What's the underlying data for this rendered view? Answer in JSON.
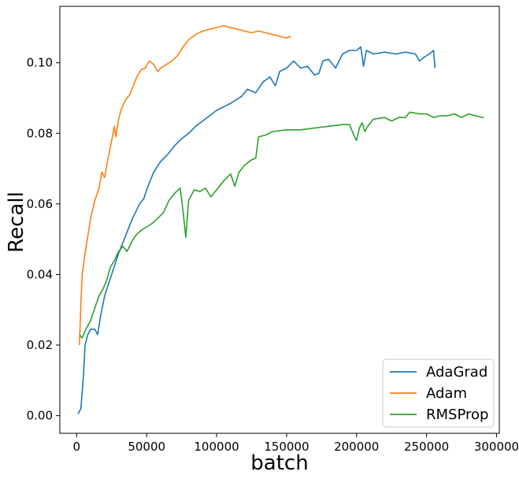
{
  "chart_data": {
    "type": "line",
    "xlabel": "batch",
    "ylabel": "Recall",
    "xlim": [
      -12000,
      302000
    ],
    "ylim": [
      -0.005,
      0.116
    ],
    "x_ticks": [
      0,
      50000,
      100000,
      150000,
      200000,
      250000,
      300000
    ],
    "y_ticks": [
      0.0,
      0.02,
      0.04,
      0.06,
      0.08,
      0.1
    ],
    "x_tick_labels": [
      "0",
      "50000",
      "100000",
      "150000",
      "200000",
      "250000",
      "300000"
    ],
    "y_tick_labels": [
      "0.00",
      "0.02",
      "0.04",
      "0.06",
      "0.08",
      "0.10"
    ],
    "legend_position": "lower-right",
    "grid": false,
    "series": [
      {
        "name": "AdaGrad",
        "color": "#1f77b4",
        "points": [
          [
            1000,
            0.0005
          ],
          [
            3000,
            0.002
          ],
          [
            5000,
            0.012
          ],
          [
            6000,
            0.02
          ],
          [
            8000,
            0.023
          ],
          [
            10000,
            0.0245
          ],
          [
            13000,
            0.0245
          ],
          [
            15000,
            0.023
          ],
          [
            17000,
            0.028
          ],
          [
            20000,
            0.034
          ],
          [
            25000,
            0.04
          ],
          [
            30000,
            0.046
          ],
          [
            35000,
            0.051
          ],
          [
            40000,
            0.056
          ],
          [
            45000,
            0.06
          ],
          [
            48000,
            0.0615
          ],
          [
            50000,
            0.064
          ],
          [
            55000,
            0.069
          ],
          [
            60000,
            0.072
          ],
          [
            65000,
            0.074
          ],
          [
            70000,
            0.0765
          ],
          [
            75000,
            0.0785
          ],
          [
            80000,
            0.08
          ],
          [
            85000,
            0.082
          ],
          [
            90000,
            0.0835
          ],
          [
            95000,
            0.085
          ],
          [
            100000,
            0.0865
          ],
          [
            110000,
            0.0885
          ],
          [
            118000,
            0.0905
          ],
          [
            122000,
            0.0925
          ],
          [
            128000,
            0.0915
          ],
          [
            133000,
            0.0945
          ],
          [
            138000,
            0.096
          ],
          [
            142000,
            0.0935
          ],
          [
            145000,
            0.0975
          ],
          [
            150000,
            0.0985
          ],
          [
            155000,
            0.1005
          ],
          [
            160000,
            0.0985
          ],
          [
            165000,
            0.099
          ],
          [
            170000,
            0.0965
          ],
          [
            173000,
            0.097
          ],
          [
            176000,
            0.1005
          ],
          [
            180000,
            0.101
          ],
          [
            185000,
            0.0985
          ],
          [
            190000,
            0.1025
          ],
          [
            195000,
            0.1035
          ],
          [
            200000,
            0.1035
          ],
          [
            203000,
            0.1045
          ],
          [
            205000,
            0.099
          ],
          [
            207000,
            0.1035
          ],
          [
            212000,
            0.1025
          ],
          [
            220000,
            0.103
          ],
          [
            228000,
            0.1025
          ],
          [
            235000,
            0.103
          ],
          [
            242000,
            0.1025
          ],
          [
            245000,
            0.1005
          ],
          [
            248000,
            0.1015
          ],
          [
            252000,
            0.1025
          ],
          [
            255000,
            0.1035
          ],
          [
            256000,
            0.0985
          ]
        ]
      },
      {
        "name": "Adam",
        "color": "#ff7f0e",
        "points": [
          [
            2000,
            0.02
          ],
          [
            3000,
            0.032
          ],
          [
            4000,
            0.04
          ],
          [
            6000,
            0.046
          ],
          [
            8000,
            0.051
          ],
          [
            10000,
            0.056
          ],
          [
            13000,
            0.061
          ],
          [
            16000,
            0.0645
          ],
          [
            18000,
            0.069
          ],
          [
            20000,
            0.0675
          ],
          [
            22000,
            0.072
          ],
          [
            25000,
            0.078
          ],
          [
            27000,
            0.082
          ],
          [
            28000,
            0.079
          ],
          [
            30000,
            0.084
          ],
          [
            32000,
            0.087
          ],
          [
            35000,
            0.0895
          ],
          [
            38000,
            0.091
          ],
          [
            40000,
            0.093
          ],
          [
            43000,
            0.096
          ],
          [
            46000,
            0.098
          ],
          [
            49000,
            0.0985
          ],
          [
            52000,
            0.1005
          ],
          [
            55000,
            0.0995
          ],
          [
            58000,
            0.0975
          ],
          [
            60000,
            0.0985
          ],
          [
            64000,
            0.0995
          ],
          [
            68000,
            0.1005
          ],
          [
            72000,
            0.102
          ],
          [
            76000,
            0.1045
          ],
          [
            80000,
            0.1065
          ],
          [
            85000,
            0.108
          ],
          [
            90000,
            0.109
          ],
          [
            95000,
            0.1095
          ],
          [
            100000,
            0.11
          ],
          [
            105000,
            0.1105
          ],
          [
            110000,
            0.11
          ],
          [
            115000,
            0.1095
          ],
          [
            120000,
            0.109
          ],
          [
            125000,
            0.1085
          ],
          [
            130000,
            0.109
          ],
          [
            135000,
            0.1085
          ],
          [
            140000,
            0.108
          ],
          [
            145000,
            0.1075
          ],
          [
            150000,
            0.107
          ],
          [
            152000,
            0.1075
          ],
          [
            153000,
            0.107
          ]
        ]
      },
      {
        "name": "RMSProp",
        "color": "#2ca02c",
        "points": [
          [
            2000,
            0.023
          ],
          [
            4000,
            0.022
          ],
          [
            6000,
            0.024
          ],
          [
            8000,
            0.0255
          ],
          [
            10000,
            0.027
          ],
          [
            13000,
            0.0305
          ],
          [
            16000,
            0.034
          ],
          [
            19000,
            0.036
          ],
          [
            22000,
            0.039
          ],
          [
            24000,
            0.042
          ],
          [
            27000,
            0.044
          ],
          [
            30000,
            0.0465
          ],
          [
            33000,
            0.048
          ],
          [
            36000,
            0.0465
          ],
          [
            39000,
            0.049
          ],
          [
            42000,
            0.051
          ],
          [
            46000,
            0.0525
          ],
          [
            50000,
            0.0535
          ],
          [
            54000,
            0.0545
          ],
          [
            58000,
            0.056
          ],
          [
            62000,
            0.0575
          ],
          [
            66000,
            0.061
          ],
          [
            70000,
            0.063
          ],
          [
            74000,
            0.0645
          ],
          [
            76000,
            0.058
          ],
          [
            78000,
            0.0505
          ],
          [
            80000,
            0.061
          ],
          [
            84000,
            0.064
          ],
          [
            88000,
            0.0635
          ],
          [
            92000,
            0.0645
          ],
          [
            96000,
            0.062
          ],
          [
            100000,
            0.064
          ],
          [
            105000,
            0.0665
          ],
          [
            110000,
            0.0685
          ],
          [
            113000,
            0.065
          ],
          [
            116000,
            0.069
          ],
          [
            120000,
            0.071
          ],
          [
            125000,
            0.0725
          ],
          [
            128000,
            0.073
          ],
          [
            130000,
            0.079
          ],
          [
            135000,
            0.0795
          ],
          [
            140000,
            0.0805
          ],
          [
            150000,
            0.081
          ],
          [
            160000,
            0.081
          ],
          [
            170000,
            0.0815
          ],
          [
            180000,
            0.082
          ],
          [
            190000,
            0.0825
          ],
          [
            195000,
            0.0825
          ],
          [
            198000,
            0.0795
          ],
          [
            200000,
            0.078
          ],
          [
            202000,
            0.0815
          ],
          [
            204000,
            0.083
          ],
          [
            206000,
            0.0805
          ],
          [
            208000,
            0.082
          ],
          [
            212000,
            0.084
          ],
          [
            220000,
            0.0845
          ],
          [
            225000,
            0.0835
          ],
          [
            230000,
            0.0845
          ],
          [
            235000,
            0.0845
          ],
          [
            238000,
            0.086
          ],
          [
            245000,
            0.0855
          ],
          [
            250000,
            0.0855
          ],
          [
            255000,
            0.0845
          ],
          [
            260000,
            0.085
          ],
          [
            265000,
            0.085
          ],
          [
            270000,
            0.0855
          ],
          [
            275000,
            0.0845
          ],
          [
            280000,
            0.0855
          ],
          [
            285000,
            0.085
          ],
          [
            290000,
            0.0845
          ],
          [
            291000,
            0.0845
          ]
        ]
      }
    ]
  }
}
